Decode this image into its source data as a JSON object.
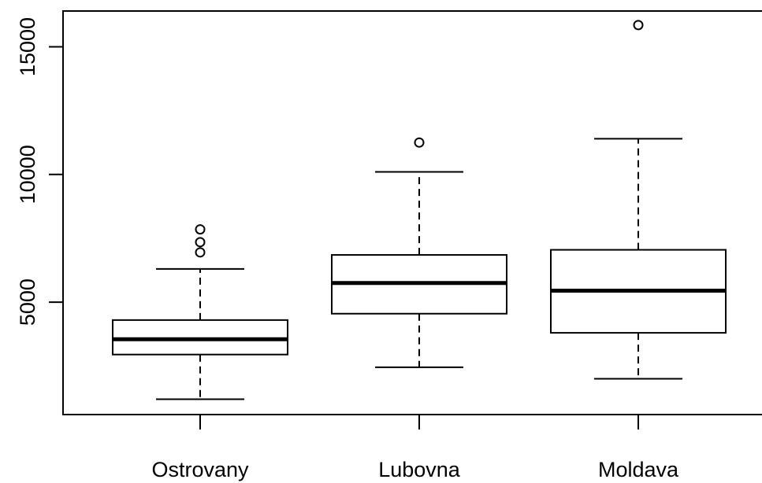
{
  "chart_data": {
    "type": "box",
    "title": "",
    "xlabel": "",
    "ylabel": "",
    "ylim": [
      600,
      16400
    ],
    "yticks": [
      5000,
      10000,
      15000
    ],
    "ytick_labels": [
      "5000",
      "10000",
      "15000"
    ],
    "categories": [
      "Ostrovany",
      "Lubovna",
      "Moldava"
    ],
    "grid": false,
    "boxes": [
      {
        "category": "Ostrovany",
        "whisker_low": 1200,
        "q1": 2950,
        "median": 3550,
        "q3": 4300,
        "whisker_high": 6300,
        "outliers": [
          6950,
          7350,
          7850
        ]
      },
      {
        "category": "Lubovna",
        "whisker_low": 2450,
        "q1": 4550,
        "median": 5750,
        "q3": 6850,
        "whisker_high": 10100,
        "outliers": [
          11250
        ]
      },
      {
        "category": "Moldava",
        "whisker_low": 2000,
        "q1": 3800,
        "median": 5450,
        "q3": 7050,
        "whisker_high": 11400,
        "outliers": [
          15850
        ]
      }
    ]
  }
}
